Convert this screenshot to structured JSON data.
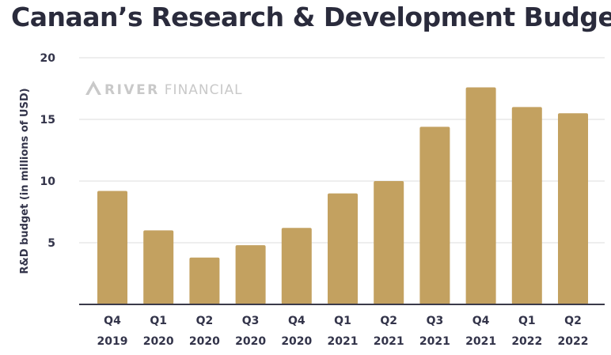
{
  "title": "Canaan’s Research & Development Budget",
  "watermark": {
    "bold": "RIVER",
    "light": "FINANCIAL",
    "icon": "river-chevron-icon"
  },
  "colors": {
    "bar": "#c3a160",
    "axis": "#3a3a4a",
    "grid": "#dcdcdc",
    "title": "#2a2b3c"
  },
  "chart_data": {
    "type": "bar",
    "title": "Canaan’s Research & Development Budget",
    "xlabel": "",
    "ylabel": "R&D budget (in millions of USD)",
    "ylim": [
      0,
      20
    ],
    "yticks": [
      5,
      10,
      15,
      20
    ],
    "grid": true,
    "categories": [
      [
        "Q4",
        "2019"
      ],
      [
        "Q1",
        "2020"
      ],
      [
        "Q2",
        "2020"
      ],
      [
        "Q3",
        "2020"
      ],
      [
        "Q4",
        "2020"
      ],
      [
        "Q1",
        "2021"
      ],
      [
        "Q2",
        "2021"
      ],
      [
        "Q3",
        "2021"
      ],
      [
        "Q4",
        "2021"
      ],
      [
        "Q1",
        "2022"
      ],
      [
        "Q2",
        "2022"
      ]
    ],
    "values": [
      9.2,
      6.0,
      3.8,
      4.8,
      6.2,
      9.0,
      10.0,
      14.4,
      17.6,
      16.0,
      15.5
    ]
  }
}
